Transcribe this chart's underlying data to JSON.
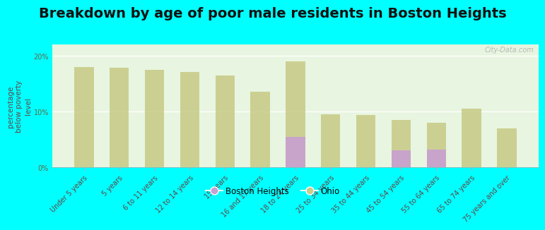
{
  "title": "Breakdown by age of poor male residents in Boston Heights",
  "ylabel": "percentage\nbelow poverty\nlevel",
  "categories": [
    "Under 5 years",
    "5 years",
    "6 to 11 years",
    "12 to 14 years",
    "15 years",
    "16 and 17 years",
    "18 to 24 years",
    "25 to 34 years",
    "35 to 44 years",
    "45 to 54 years",
    "55 to 64 years",
    "65 to 74 years",
    "75 years and over"
  ],
  "ohio_values": [
    18.0,
    17.9,
    17.5,
    17.1,
    16.5,
    13.5,
    19.0,
    9.5,
    9.4,
    8.5,
    8.0,
    10.5,
    7.0
  ],
  "boston_values": [
    0,
    0,
    0,
    0,
    0,
    0,
    5.5,
    0,
    0,
    3.0,
    3.2,
    0,
    0
  ],
  "ohio_color": "#c8cc8a",
  "boston_color": "#c8a0d2",
  "background_color": "#00ffff",
  "plot_bg_top": "#f8fff8",
  "plot_bg_bottom": "#e8f5e0",
  "ylim": [
    0,
    22
  ],
  "yticks": [
    0,
    10,
    20
  ],
  "ytick_labels": [
    "0%",
    "10%",
    "20%"
  ],
  "bar_width": 0.55,
  "title_fontsize": 14,
  "axis_label_fontsize": 7.5,
  "tick_fontsize": 7,
  "legend_labels": [
    "Boston Heights",
    "Ohio"
  ],
  "watermark": "City-Data.com"
}
